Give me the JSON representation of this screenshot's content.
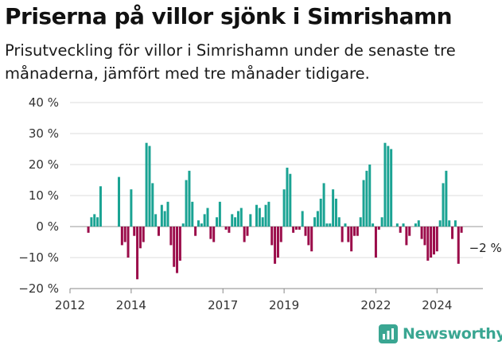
{
  "title": "Priserna på villor sjönk i Simrishamn",
  "subtitle": "Prisutveckling för villor i Simrishamn under de senaste tre månaderna, jämfört med tre månader tidigare.",
  "brand": {
    "name": "Newsworthy",
    "logo_icon": "newsworthy-logo-icon",
    "color": "#3aa692"
  },
  "chart_data": {
    "type": "bar",
    "y_tick_labels": [
      "40 %",
      "30 %",
      "20 %",
      "10 %",
      "0 %",
      "−10 %",
      "−20 %"
    ],
    "y_ticks": [
      40,
      30,
      20,
      10,
      0,
      -10,
      -20
    ],
    "x_tick_labels": [
      "2012",
      "2014",
      "2017",
      "2019",
      "2022",
      "2024"
    ],
    "x_ticks": [
      2012.0,
      2014.0,
      2017.0,
      2019.0,
      2022.0,
      2024.0
    ],
    "xlim": [
      2012.0,
      2025.5
    ],
    "ylim": [
      -20,
      40
    ],
    "grid": true,
    "colors": {
      "positive": "#1aa393",
      "negative": "#9b0c4a"
    },
    "last_value_label": "−2 %",
    "x": [
      2012.6,
      2012.7,
      2012.8,
      2012.9,
      2013.0,
      2013.1,
      2013.6,
      2013.7,
      2013.8,
      2013.9,
      2014.0,
      2014.1,
      2014.2,
      2014.3,
      2014.4,
      2014.5,
      2014.6,
      2014.7,
      2014.8,
      2014.9,
      2015.0,
      2015.1,
      2015.2,
      2015.3,
      2015.4,
      2015.5,
      2015.6,
      2015.7,
      2015.8,
      2015.9,
      2016.0,
      2016.1,
      2016.2,
      2016.3,
      2016.4,
      2016.5,
      2016.6,
      2016.7,
      2016.8,
      2016.9,
      2017.0,
      2017.1,
      2017.2,
      2017.3,
      2017.4,
      2017.5,
      2017.6,
      2017.7,
      2017.8,
      2017.9,
      2018.0,
      2018.1,
      2018.2,
      2018.3,
      2018.4,
      2018.5,
      2018.6,
      2018.7,
      2018.8,
      2018.9,
      2019.0,
      2019.1,
      2019.2,
      2019.3,
      2019.4,
      2019.5,
      2019.6,
      2019.7,
      2019.8,
      2019.9,
      2020.0,
      2020.1,
      2020.2,
      2020.3,
      2020.4,
      2020.5,
      2020.6,
      2020.7,
      2020.8,
      2020.9,
      2021.0,
      2021.1,
      2021.2,
      2021.3,
      2021.4,
      2021.5,
      2021.6,
      2021.7,
      2021.8,
      2021.9,
      2022.0,
      2022.1,
      2022.2,
      2022.3,
      2022.4,
      2022.5,
      2022.6,
      2022.7,
      2022.8,
      2022.9,
      2023.0,
      2023.1,
      2023.2,
      2023.3,
      2023.4,
      2023.5,
      2023.6,
      2023.7,
      2023.8,
      2023.9,
      2024.0,
      2024.1,
      2024.2,
      2024.3,
      2024.4,
      2024.5,
      2024.6,
      2024.7,
      2024.8
    ],
    "values": [
      -2,
      3,
      4,
      3,
      13,
      0,
      16,
      -6,
      -5,
      -10,
      12,
      -3,
      -17,
      -7,
      -5,
      27,
      26,
      14,
      4,
      -3,
      7,
      5,
      8,
      -6,
      -13,
      -15,
      -11,
      1,
      15,
      18,
      8,
      -3,
      2,
      1,
      4,
      6,
      -4,
      -5,
      3,
      8,
      0,
      -1,
      -2,
      4,
      3,
      5,
      6,
      -5,
      -3,
      4,
      0,
      7,
      6,
      3,
      7,
      8,
      -6,
      -12,
      -10,
      -5,
      12,
      19,
      17,
      -2,
      -1,
      -1,
      5,
      -3,
      -6,
      -8,
      3,
      5,
      9,
      14,
      1,
      1,
      12,
      9,
      3,
      -5,
      1,
      -5,
      -8,
      -3,
      -3,
      3,
      15,
      18,
      20,
      1,
      -10,
      -1,
      3,
      27,
      26,
      25,
      0,
      1,
      -2,
      1,
      -6,
      -3,
      0,
      1,
      2,
      -4,
      -6,
      -11,
      -10,
      -9,
      -8,
      2,
      14,
      18,
      2,
      -4,
      2,
      -12,
      -2
    ]
  }
}
